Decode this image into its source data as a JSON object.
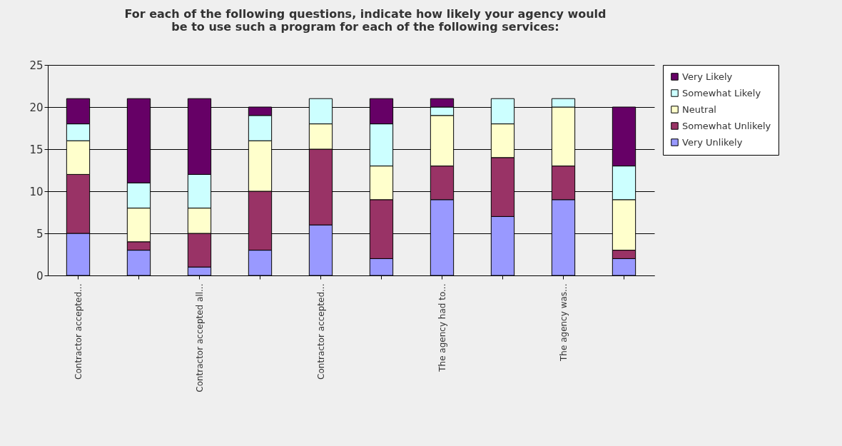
{
  "chart_data": {
    "type": "bar",
    "stacked": true,
    "title": "For each of the following questions, indicate how likely your agency would be to use such a program for each of the following services:",
    "categories": [
      "Contractor accepted...",
      null,
      "Contractor accepted all...",
      null,
      "Contractor accepted...",
      null,
      "The agency had to...",
      null,
      "The agency was...",
      null
    ],
    "series": [
      {
        "name": "Very Unlikely",
        "color": "#9999ff",
        "values": [
          5,
          3,
          1,
          3,
          6,
          2,
          9,
          7,
          9,
          2
        ]
      },
      {
        "name": "Somewhat Unlikely",
        "color": "#993366",
        "values": [
          7,
          1,
          4,
          7,
          9,
          7,
          4,
          7,
          4,
          1
        ]
      },
      {
        "name": "Neutral",
        "color": "#ffffcc",
        "values": [
          4,
          4,
          3,
          6,
          3,
          4,
          6,
          4,
          7,
          6
        ]
      },
      {
        "name": "Somewhat Likely",
        "color": "#ccffff",
        "values": [
          2,
          3,
          4,
          3,
          3,
          5,
          1,
          3,
          1,
          4
        ]
      },
      {
        "name": "Very Likely",
        "color": "#660066",
        "values": [
          3,
          10,
          9,
          1,
          0,
          3,
          1,
          0,
          0,
          7
        ]
      }
    ],
    "ylim": [
      0,
      25
    ],
    "yticks": [
      0,
      5,
      10,
      15,
      20,
      25
    ],
    "grid": "y",
    "legend": "right"
  }
}
